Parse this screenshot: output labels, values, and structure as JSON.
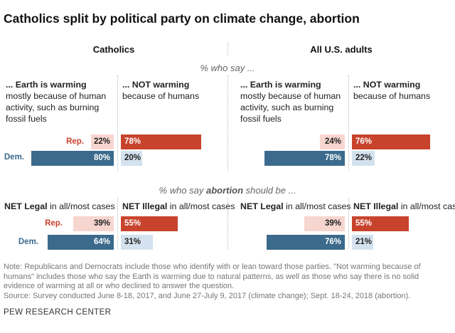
{
  "title": "Catholics split by political party on climate change, abortion",
  "panels": {
    "catholics": "Catholics",
    "all_adults": "All U.S. adults"
  },
  "climate_subtitle": "% who say ...",
  "abortion_subtitle": {
    "prefix": "% who say ",
    "emphasis": "abortion",
    "suffix": " should be ..."
  },
  "climate_headers": {
    "warming_bold": "... Earth is warming",
    "warming_line2": "mostly because of human",
    "warming_line3": "activity, such as burning",
    "warming_line4": "fossil fuels",
    "not_bold": "... NOT warming",
    "not_line2": "because of humans"
  },
  "abortion_headers": {
    "legal_bold": "NET Legal",
    "legal_rest": " in all/most cases",
    "illegal_bold": "NET Illegal",
    "illegal_rest": " in all/most cases"
  },
  "row_labels": {
    "rep": "Rep.",
    "dem": "Dem."
  },
  "colors": {
    "rep_dark": "#c8432c",
    "rep_light": "#f7d6d0",
    "dem_dark": "#3b6a8c",
    "dem_light": "#d3e2ee"
  },
  "chart_data": [
    {
      "type": "bar",
      "title": "Climate change — Catholics",
      "categories": [
        "Rep.",
        "Dem."
      ],
      "series": [
        {
          "name": "Earth is warming mostly because of human activity",
          "values": [
            22,
            80
          ]
        },
        {
          "name": "NOT warming because of humans",
          "values": [
            78,
            20
          ]
        }
      ],
      "value_labels": {
        "warming": [
          "22%",
          "80%"
        ],
        "not": [
          "78%",
          "20%"
        ]
      }
    },
    {
      "type": "bar",
      "title": "Climate change — All U.S. adults",
      "categories": [
        "Rep.",
        "Dem."
      ],
      "series": [
        {
          "name": "Earth is warming mostly because of human activity",
          "values": [
            24,
            78
          ]
        },
        {
          "name": "NOT warming because of humans",
          "values": [
            76,
            22
          ]
        }
      ],
      "value_labels": {
        "warming": [
          "24%",
          "78%"
        ],
        "not": [
          "76%",
          "22%"
        ]
      }
    },
    {
      "type": "bar",
      "title": "Abortion — Catholics",
      "categories": [
        "Rep.",
        "Dem."
      ],
      "series": [
        {
          "name": "NET Legal in all/most cases",
          "values": [
            39,
            64
          ]
        },
        {
          "name": "NET Illegal in all/most cases",
          "values": [
            55,
            31
          ]
        }
      ],
      "value_labels": {
        "legal": [
          "39%",
          "64%"
        ],
        "illegal": [
          "55%",
          "31%"
        ]
      }
    },
    {
      "type": "bar",
      "title": "Abortion — All U.S. adults",
      "categories": [
        "Rep.",
        "Dem."
      ],
      "series": [
        {
          "name": "NET Legal in all/most cases",
          "values": [
            39,
            76
          ]
        },
        {
          "name": "NET Illegal in all/most cases",
          "values": [
            55,
            21
          ]
        }
      ],
      "value_labels": {
        "legal": [
          "39%",
          "76%"
        ],
        "illegal": [
          "55%",
          "21%"
        ]
      }
    }
  ],
  "note": "Note: Republicans and Democrats include those who identify with or lean toward those parties. \"Not warming because of humans\" includes those who say the Earth is warming due to natural patterns, as well as those who say there is no solid evidence of warming at all or who declined to answer the question.",
  "source": "Source: Survey conducted June 8-18, 2017, and June 27-July 9, 2017 (climate change); Sept. 18-24, 2018 (abortion).",
  "credit": "PEW RESEARCH CENTER"
}
